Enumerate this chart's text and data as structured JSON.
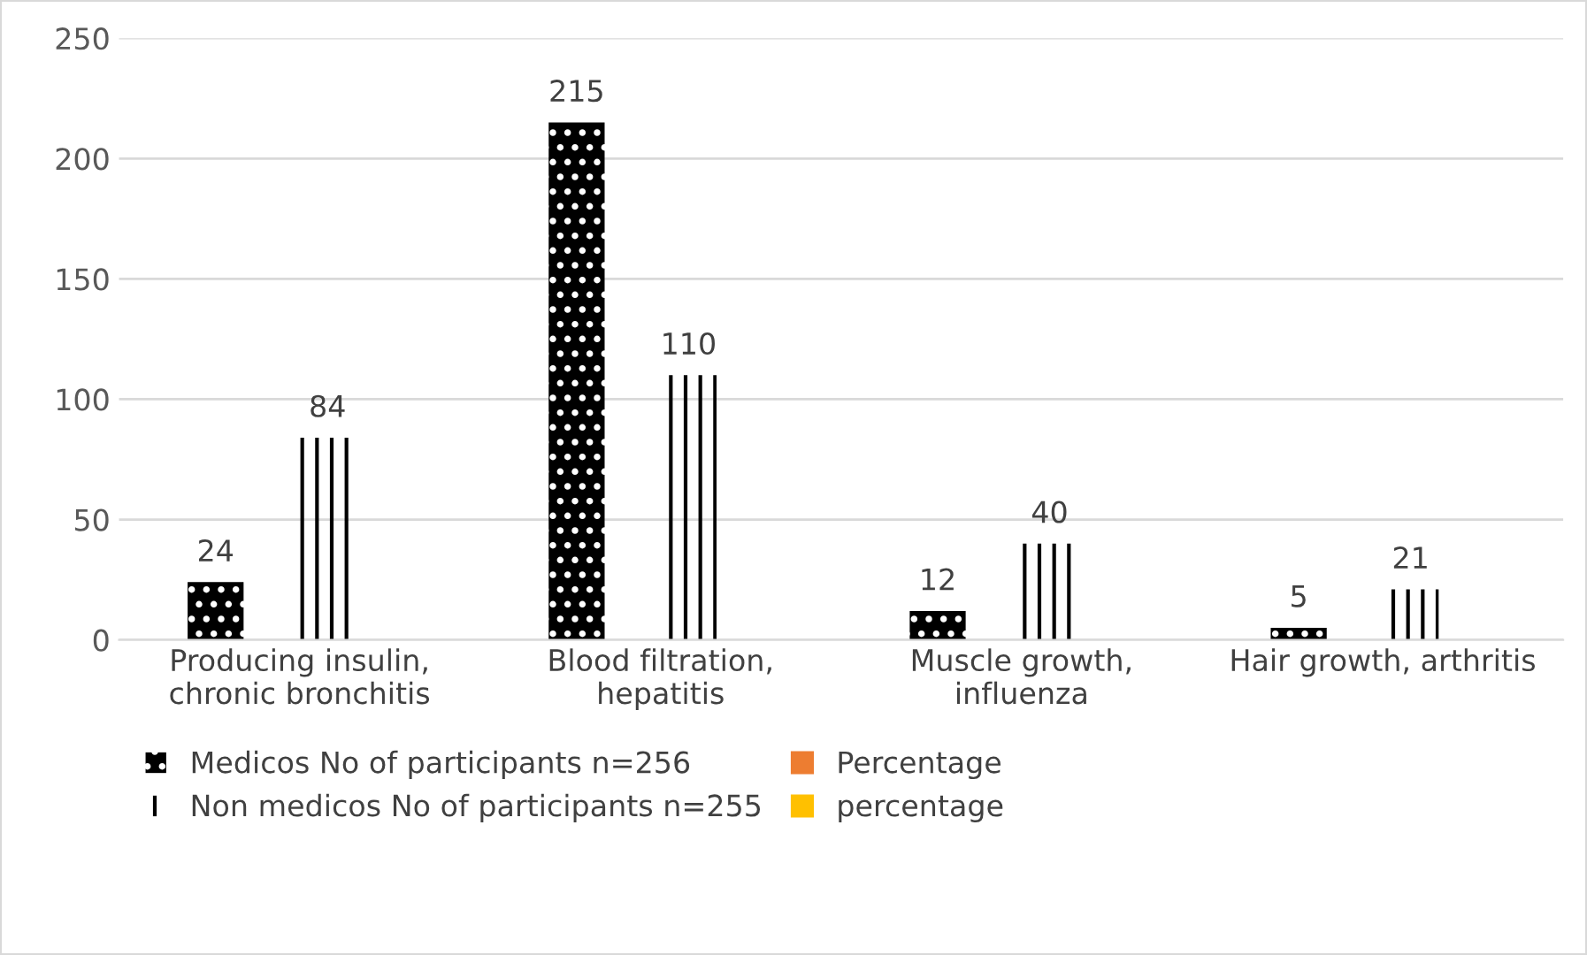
{
  "chart_data": {
    "type": "bar",
    "categories": [
      "Producing insulin,\nchronic bronchitis",
      "Blood filtration,\nhepatitis",
      "Muscle growth,\ninfluenza",
      "Hair growth, arthritis"
    ],
    "series": [
      {
        "name": "Medicos No of participants n=256",
        "color": "#000000",
        "values": [
          24,
          215,
          12,
          5
        ]
      },
      {
        "name": "Percentage",
        "color": "#ed7d31",
        "values": [
          null,
          null,
          null,
          null
        ]
      },
      {
        "name": "Non medicos No of participants n=255",
        "color": "#000000",
        "values": [
          84,
          110,
          40,
          21
        ]
      },
      {
        "name": "percentage",
        "color": "#ffc000",
        "values": [
          null,
          null,
          null,
          null
        ]
      }
    ],
    "ylim": [
      0,
      250
    ],
    "yticks": [
      0,
      50,
      100,
      150,
      200,
      250
    ],
    "grid": "y",
    "legend": "bottom",
    "data_labels": true
  }
}
